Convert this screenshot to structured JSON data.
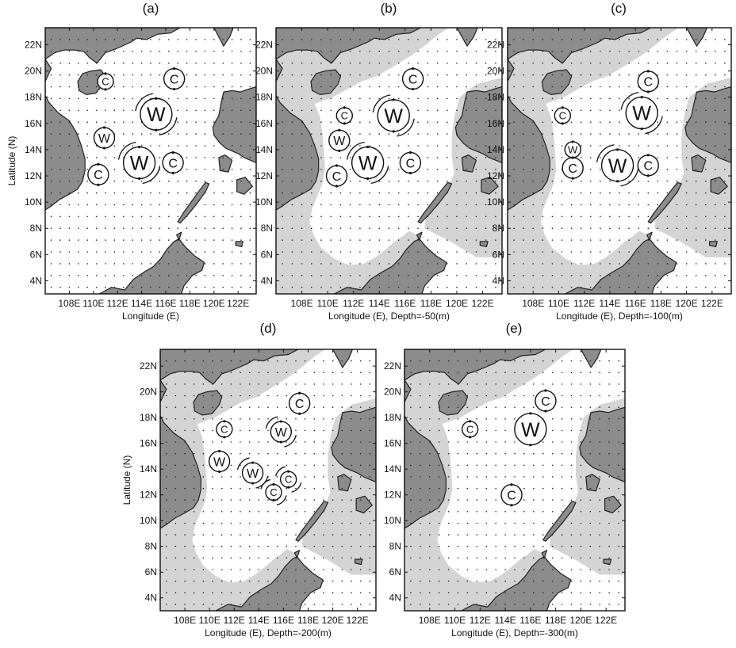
{
  "y_axis_label": "Latitude (N)",
  "lat_ticks": [
    "22N",
    "20N",
    "18N",
    "16N",
    "14N",
    "12N",
    "10N",
    "8N",
    "6N",
    "4N"
  ],
  "lon_ticks": [
    "108E",
    "110E",
    "112E",
    "114E",
    "116E",
    "118E",
    "120E",
    "122E"
  ],
  "eddy_letters": {
    "warm": "W",
    "cold": "C"
  },
  "colors": {
    "land": "#8c8c8c",
    "shelf": "#d4d4d4",
    "deep_water": "#ffffff",
    "frame": "#111111",
    "eddy": "#111111"
  },
  "panels": [
    {
      "label": "(a)",
      "xlabel": "Longitude (E)",
      "show_ylabel": true,
      "shelf_shading": false,
      "eddies": [
        {
          "type": "cold",
          "lon": 111.0,
          "lat": 19.2,
          "r": "s"
        },
        {
          "type": "cold",
          "lon": 116.7,
          "lat": 19.4,
          "r": "m"
        },
        {
          "type": "warm",
          "lon": 115.2,
          "lat": 16.7,
          "r": "l",
          "dashes": true
        },
        {
          "type": "warm",
          "lon": 110.9,
          "lat": 14.9,
          "r": "m"
        },
        {
          "type": "warm",
          "lon": 113.8,
          "lat": 13.0,
          "r": "l",
          "dashes": true
        },
        {
          "type": "cold",
          "lon": 116.6,
          "lat": 13.0,
          "r": "m"
        },
        {
          "type": "cold",
          "lon": 110.4,
          "lat": 12.1,
          "r": "m"
        }
      ]
    },
    {
      "label": "(b)",
      "xlabel": "Longitude (E),  Depth=-50(m)",
      "show_ylabel": false,
      "shelf_shading": true,
      "eddies": [
        {
          "type": "cold",
          "lon": 116.6,
          "lat": 19.4,
          "r": "m"
        },
        {
          "type": "cold",
          "lon": 111.3,
          "lat": 16.6,
          "r": "s"
        },
        {
          "type": "warm",
          "lon": 115.1,
          "lat": 16.6,
          "r": "l",
          "dashes": true
        },
        {
          "type": "warm",
          "lon": 110.9,
          "lat": 14.7,
          "r": "m"
        },
        {
          "type": "warm",
          "lon": 113.1,
          "lat": 13.0,
          "r": "l",
          "dashes": true
        },
        {
          "type": "cold",
          "lon": 116.4,
          "lat": 13.0,
          "r": "m"
        },
        {
          "type": "cold",
          "lon": 110.7,
          "lat": 12.0,
          "r": "m"
        }
      ]
    },
    {
      "label": "(c)",
      "xlabel": "Longitude (E),  Depth=-100(m)",
      "show_ylabel": false,
      "shelf_shading": true,
      "eddies": [
        {
          "type": "cold",
          "lon": 117.0,
          "lat": 19.2,
          "r": "m"
        },
        {
          "type": "warm",
          "lon": 116.5,
          "lat": 16.8,
          "r": "l",
          "dashes": true
        },
        {
          "type": "cold",
          "lon": 110.3,
          "lat": 16.6,
          "r": "s"
        },
        {
          "type": "warm",
          "lon": 111.1,
          "lat": 14.0,
          "r": "s"
        },
        {
          "type": "cold",
          "lon": 111.1,
          "lat": 12.6,
          "r": "m"
        },
        {
          "type": "warm",
          "lon": 114.6,
          "lat": 12.8,
          "r": "l",
          "dashes": true
        },
        {
          "type": "cold",
          "lon": 117.0,
          "lat": 12.8,
          "r": "m"
        }
      ]
    },
    {
      "label": "(d)",
      "xlabel": "Longitude (E),  Depth=-200(m)",
      "show_ylabel": true,
      "shelf_shading": true,
      "eddies": [
        {
          "type": "cold",
          "lon": 117.3,
          "lat": 19.1,
          "r": "m"
        },
        {
          "type": "cold",
          "lon": 111.2,
          "lat": 17.1,
          "r": "s"
        },
        {
          "type": "warm",
          "lon": 115.8,
          "lat": 16.9,
          "r": "m",
          "dashes": true
        },
        {
          "type": "warm",
          "lon": 110.8,
          "lat": 14.6,
          "r": "m"
        },
        {
          "type": "warm",
          "lon": 113.5,
          "lat": 13.7,
          "r": "m",
          "dashes": true
        },
        {
          "type": "cold",
          "lon": 116.4,
          "lat": 13.2,
          "r": "s",
          "dashes": true
        },
        {
          "type": "cold",
          "lon": 115.2,
          "lat": 12.2,
          "r": "s",
          "dashes": true
        }
      ]
    },
    {
      "label": "(e)",
      "xlabel": "Longitude (E),  Depth=-300(m)",
      "show_ylabel": false,
      "shelf_shading": true,
      "eddies": [
        {
          "type": "cold",
          "lon": 117.2,
          "lat": 19.3,
          "r": "m"
        },
        {
          "type": "cold",
          "lon": 111.2,
          "lat": 17.1,
          "r": "s"
        },
        {
          "type": "warm",
          "lon": 116.0,
          "lat": 17.1,
          "r": "l"
        },
        {
          "type": "cold",
          "lon": 114.5,
          "lat": 12.0,
          "r": "m"
        }
      ]
    }
  ]
}
